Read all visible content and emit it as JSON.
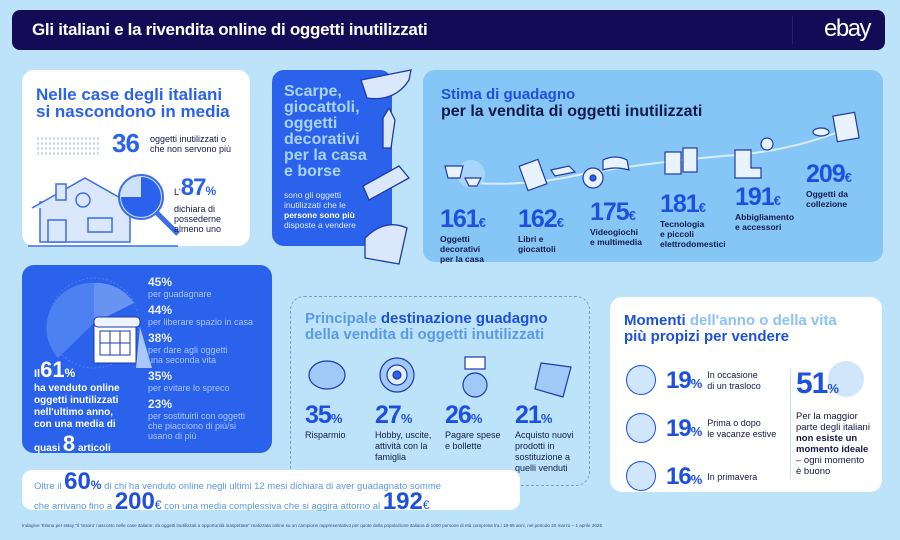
{
  "header": {
    "title": "Gli italiani e la rivendita online di oggetti inutilizzati",
    "logo": "ebay"
  },
  "hidden_items": {
    "title_line1": "Nelle case degli italiani",
    "title_line2": "si nascondono in media",
    "count": "36",
    "count_label_1": "oggetti inutilizzati o",
    "count_label_2": "che non servono più",
    "pct_prefix": "L'",
    "pct": "87",
    "pct_sign": "%",
    "pct_label_1": "dichiara di",
    "pct_label_2": "possederne",
    "pct_label_3": "almeno uno"
  },
  "categories_card": {
    "title_lines": [
      "Scarpe,",
      "giocattoli,",
      "oggetti",
      "decorativi",
      "per la casa",
      "e borse"
    ],
    "desc_lines": [
      "sono gli oggetti",
      "inutilizzati che le",
      "persone sono più",
      "disposte a vendere"
    ]
  },
  "estimate": {
    "title_1": "Stima di guadagno",
    "title_2": "per la vendita di oggetti inutilizzati",
    "currency": "€",
    "items": [
      {
        "value": "161",
        "label": [
          "Oggetti",
          "decorativi",
          "per la casa"
        ]
      },
      {
        "value": "162",
        "label": [
          "Libri e",
          "giocattoli"
        ]
      },
      {
        "value": "175",
        "label": [
          "Videogiochi",
          "e multimedia"
        ]
      },
      {
        "value": "181",
        "label": [
          "Tecnologia",
          "e piccoli",
          "elettrodomestici"
        ]
      },
      {
        "value": "191",
        "label": [
          "Abbigliamento",
          "e accessori"
        ]
      },
      {
        "value": "209",
        "label": [
          "Oggetti da",
          "collezione"
        ]
      }
    ]
  },
  "sold": {
    "prefix": "Il",
    "pct": "61",
    "pct_sign": "%",
    "lines": [
      "ha venduto online",
      "oggetti inutilizzati",
      "nell'ultimo anno,",
      "con una media di"
    ],
    "quasi": "quasi",
    "avg": "8",
    "articoli": "articoli",
    "reasons": [
      {
        "pct": "45%",
        "label": [
          "per guadagnare"
        ]
      },
      {
        "pct": "44%",
        "label": [
          "per liberare spazio in casa"
        ]
      },
      {
        "pct": "38%",
        "label": [
          "per dare agli oggetti",
          "una seconda vita"
        ]
      },
      {
        "pct": "35%",
        "label": [
          "per evitare lo spreco"
        ]
      },
      {
        "pct": "23%",
        "label": [
          "per sostituirli con oggetti",
          "che piacciono di più/si",
          "usano di più"
        ]
      }
    ]
  },
  "destination": {
    "title_a": "Principale ",
    "title_b": "destinazione guadagno",
    "title_c": "della vendita di oggetti inutilizzati",
    "items": [
      {
        "value": "35",
        "label": [
          "Risparmio"
        ]
      },
      {
        "value": "27",
        "label": [
          "Hobby, uscite,",
          "attività con la",
          "famiglia"
        ]
      },
      {
        "value": "26",
        "label": [
          "Pagare spese",
          "e bollette"
        ]
      },
      {
        "value": "21",
        "label": [
          "Acquisto nuovi",
          "prodotti in",
          "sostituzione a",
          "quelli venduti"
        ]
      }
    ]
  },
  "moments": {
    "title_a": "Momenti ",
    "title_b": "dell'anno o della vita",
    "title_c": "più propizi per vendere",
    "items": [
      {
        "value": "19",
        "label": [
          "In occasione",
          "di un trasloco"
        ]
      },
      {
        "value": "19",
        "label": [
          "Prima o dopo",
          "le vacanze estive"
        ]
      },
      {
        "value": "16",
        "label": [
          "In primavera"
        ]
      }
    ],
    "side_value": "51",
    "side_lines": [
      "Per la maggior",
      "parte degli italiani"
    ],
    "side_bold": [
      "non esiste un",
      "momento ideale"
    ],
    "side_end": [
      "– ogni momento",
      "è buono"
    ]
  },
  "banner": {
    "a": "Oltre il",
    "pct": "60",
    "pct_sign": "%",
    "b": "di chi ha venduto online negli ultimi 12 mesi dichiara di aver guadagnato somme",
    "c": "che arrivano fino a",
    "max": "200",
    "d": "con una media complessiva che si aggira attorno al",
    "avg": "192",
    "currency": "€"
  },
  "footnote": "Indagine Toluna per eBay \"Il 'tesoro' nascosto nelle case italiane: da oggetti inutilizzati a opportunità inaspettate\" realizzata online su un campione rappresentativo per quote della popolazione italiana di 1000 persone di età compresa tra i 18-65 anni, nel periodo 20 marzo – 1 aprile 2025",
  "colors": {
    "background": "#bde3fb",
    "header": "#140b57",
    "accent": "#2b62ec",
    "light_panel": "#86c6f7"
  }
}
